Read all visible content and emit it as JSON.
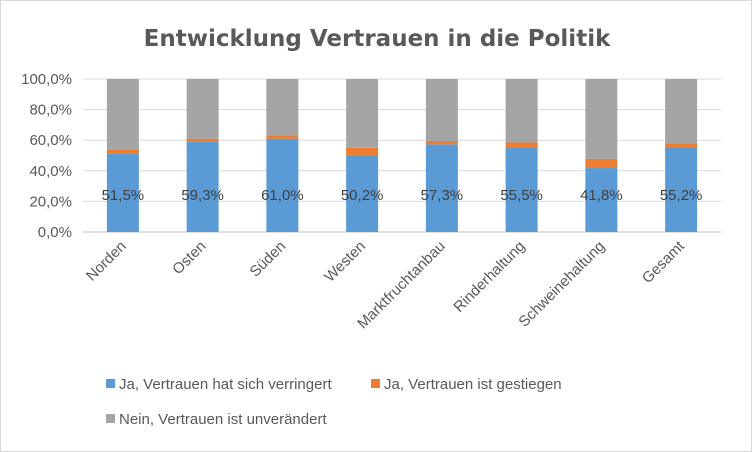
{
  "chart_data": {
    "type": "bar",
    "stacked": true,
    "title": "Entwicklung Vertrauen in die Politik",
    "xlabel": "",
    "ylabel": "",
    "ylim": [
      0,
      100
    ],
    "ytick_labels": [
      "0,0%",
      "20,0%",
      "40,0%",
      "60,0%",
      "80,0%",
      "100,0%"
    ],
    "categories": [
      "Norden",
      "Osten",
      "Süden",
      "Westen",
      "Marktfruchtanbau",
      "Rinderhaltung",
      "Schweinehaltung",
      "Gesamt"
    ],
    "series": [
      {
        "name": "Ja, Vertrauen hat sich verringert",
        "color": "#5b9bd5",
        "values": [
          51.5,
          59.3,
          61.0,
          50.2,
          57.3,
          55.5,
          41.8,
          55.2
        ],
        "data_labels": [
          "51,5%",
          "59,3%",
          "61,0%",
          "50,2%",
          "57,3%",
          "55,5%",
          "41,8%",
          "55,2%"
        ]
      },
      {
        "name": "Ja, Vertrauen ist gestiegen",
        "color": "#ed7d31",
        "values": [
          2.5,
          1.7,
          2.0,
          4.8,
          2.2,
          3.0,
          6.0,
          2.8
        ]
      },
      {
        "name": "Nein, Vertrauen ist unverändert",
        "color": "#a5a5a5",
        "values": [
          46.0,
          39.0,
          37.0,
          45.0,
          40.5,
          41.5,
          52.2,
          42.0
        ]
      }
    ],
    "grid": true,
    "legend_position": "bottom"
  }
}
